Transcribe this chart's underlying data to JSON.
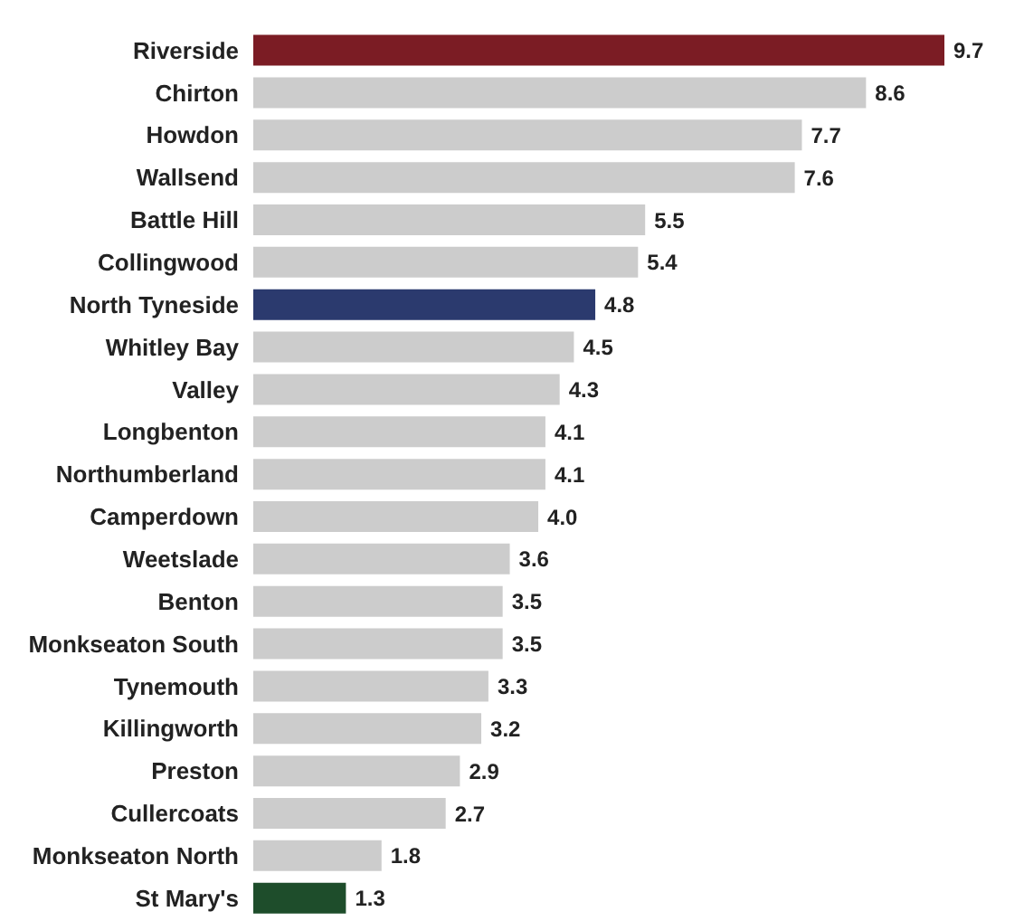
{
  "chart_data": {
    "type": "bar",
    "orientation": "horizontal",
    "categories": [
      "Riverside",
      "Chirton",
      "Howdon",
      "Wallsend",
      "Battle Hill",
      "Collingwood",
      "North Tyneside",
      "Whitley Bay",
      "Valley",
      "Longbenton",
      "Northumberland",
      "Camperdown",
      "Weetslade",
      "Benton",
      "Monkseaton South",
      "Tynemouth",
      "Killingworth",
      "Preston",
      "Cullercoats",
      "Monkseaton North",
      "St Mary's"
    ],
    "values": [
      9.7,
      8.6,
      7.7,
      7.6,
      5.5,
      5.4,
      4.8,
      4.5,
      4.3,
      4.1,
      4.1,
      4.0,
      3.6,
      3.5,
      3.5,
      3.3,
      3.2,
      2.9,
      2.7,
      1.8,
      1.3
    ],
    "value_labels": [
      "9.7",
      "8.6",
      "7.7",
      "7.6",
      "5.5",
      "5.4",
      "4.8",
      "4.5",
      "4.3",
      "4.1",
      "4.1",
      "4.0",
      "3.6",
      "3.5",
      "3.5",
      "3.3",
      "3.2",
      "2.9",
      "2.7",
      "1.8",
      "1.3"
    ],
    "colors": [
      "#7b1c24",
      "#cccccc",
      "#cccccc",
      "#cccccc",
      "#cccccc",
      "#cccccc",
      "#2b3a6e",
      "#cccccc",
      "#cccccc",
      "#cccccc",
      "#cccccc",
      "#cccccc",
      "#cccccc",
      "#cccccc",
      "#cccccc",
      "#cccccc",
      "#cccccc",
      "#cccccc",
      "#cccccc",
      "#cccccc",
      "#1e4d2b"
    ]
  }
}
